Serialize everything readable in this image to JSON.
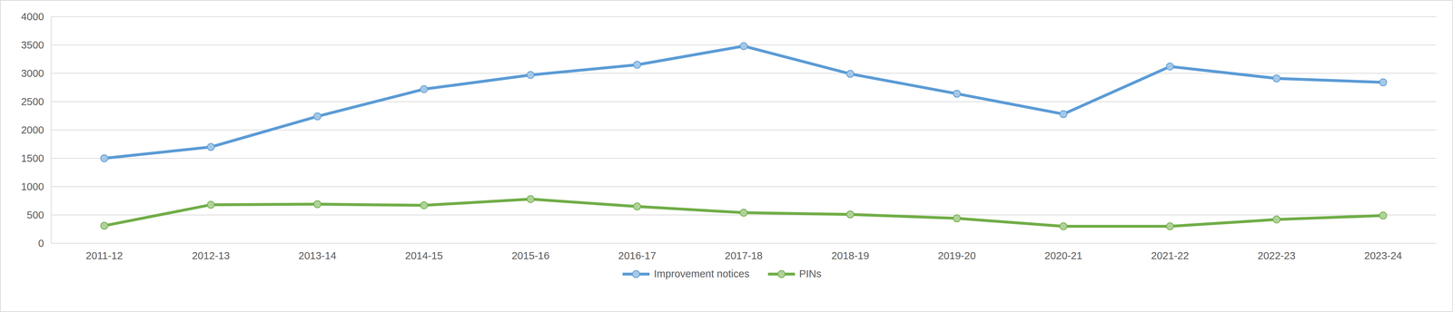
{
  "chart_data": {
    "type": "line",
    "categories": [
      "2011-12",
      "2012-13",
      "2013-14",
      "2014-15",
      "2015-16",
      "2016-17",
      "2017-18",
      "2018-19",
      "2019-20",
      "2020-21",
      "2021-22",
      "2022-23",
      "2023-24"
    ],
    "series": [
      {
        "name": "Improvement notices",
        "color": "#5b9bd5",
        "marker": "circle",
        "values": [
          1500,
          1700,
          2240,
          2720,
          2970,
          3150,
          3480,
          2990,
          2640,
          2280,
          3120,
          2910,
          2840
        ]
      },
      {
        "name": "PINs",
        "color": "#70ad47",
        "marker": "circle",
        "values": [
          310,
          680,
          690,
          670,
          780,
          650,
          540,
          510,
          440,
          300,
          300,
          420,
          490
        ]
      }
    ],
    "ylim": [
      0,
      4000
    ],
    "yticks": [
      0,
      500,
      1000,
      1500,
      2000,
      2500,
      3000,
      3500,
      4000
    ],
    "grid": true,
    "legend": "bottom"
  }
}
